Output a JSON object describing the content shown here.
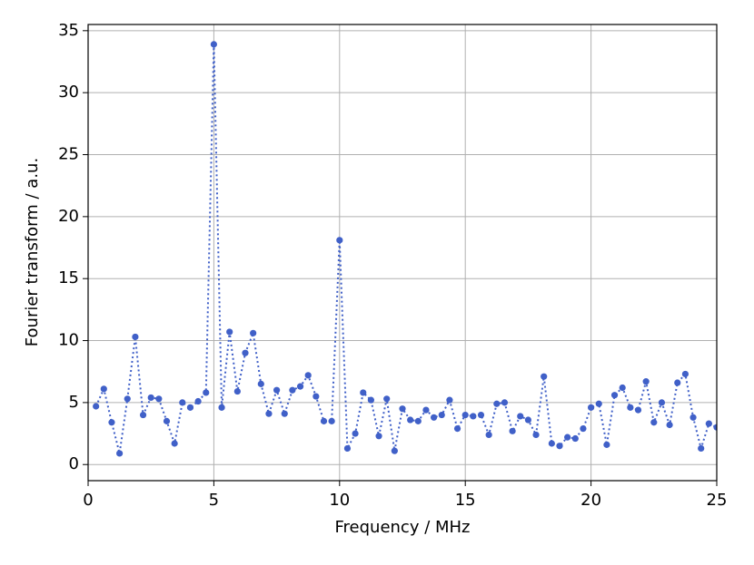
{
  "chart_data": {
    "type": "line",
    "xlabel": "Frequency / MHz",
    "ylabel": "Fourier transform / a.u.",
    "x": [
      0.3125,
      0.625,
      0.9375,
      1.25,
      1.5625,
      1.875,
      2.1875,
      2.5,
      2.8125,
      3.125,
      3.4375,
      3.75,
      4.0625,
      4.375,
      4.6875,
      5,
      5.3125,
      5.625,
      5.9375,
      6.25,
      6.5625,
      6.875,
      7.1875,
      7.5,
      7.8125,
      8.125,
      8.4375,
      8.75,
      9.0625,
      9.375,
      9.6875,
      10,
      10.3125,
      10.625,
      10.9375,
      11.25,
      11.5625,
      11.875,
      12.1875,
      12.5,
      12.8125,
      13.125,
      13.4375,
      13.75,
      14.0625,
      14.375,
      14.6875,
      15,
      15.3125,
      15.625,
      15.9375,
      16.25,
      16.5625,
      16.875,
      17.1875,
      17.5,
      17.8125,
      18.125,
      18.4375,
      18.75,
      19.0625,
      19.375,
      19.6875,
      20,
      20.3125,
      20.625,
      20.9375,
      21.25,
      21.5625,
      21.875,
      22.1875,
      22.5,
      22.8125,
      23.125,
      23.4375,
      23.75,
      24.0625,
      24.375,
      24.6875,
      25
    ],
    "values": [
      4.7,
      6.1,
      3.4,
      0.9,
      5.3,
      10.3,
      4.0,
      5.4,
      5.3,
      3.5,
      1.7,
      5.0,
      4.6,
      5.1,
      5.8,
      33.9,
      4.6,
      10.7,
      5.9,
      9.0,
      10.6,
      6.5,
      4.1,
      6.0,
      4.1,
      6.0,
      6.3,
      7.2,
      5.5,
      3.5,
      3.5,
      18.1,
      1.3,
      2.5,
      5.8,
      5.2,
      2.3,
      5.3,
      1.1,
      4.5,
      3.6,
      3.5,
      4.4,
      3.8,
      4.0,
      5.2,
      2.9,
      4.0,
      3.9,
      4.0,
      2.4,
      4.9,
      5.0,
      2.7,
      3.9,
      3.6,
      2.4,
      7.1,
      1.7,
      1.5,
      2.2,
      2.1,
      2.9,
      4.6,
      4.9,
      1.6,
      5.6,
      6.2,
      4.6,
      4.4,
      6.7,
      3.4,
      5.0,
      3.2,
      6.6,
      7.3,
      3.8,
      1.3,
      3.3,
      3.0
    ],
    "color": "#4060c8",
    "linestyle": "dotted",
    "marker": "circle",
    "xlim": [
      0,
      25
    ],
    "ylim": [
      -1.3,
      35.5
    ],
    "xticks": [
      0,
      5,
      10,
      15,
      20,
      25
    ],
    "yticks": [
      0,
      5,
      10,
      15,
      20,
      25,
      30,
      35
    ],
    "grid": true
  }
}
